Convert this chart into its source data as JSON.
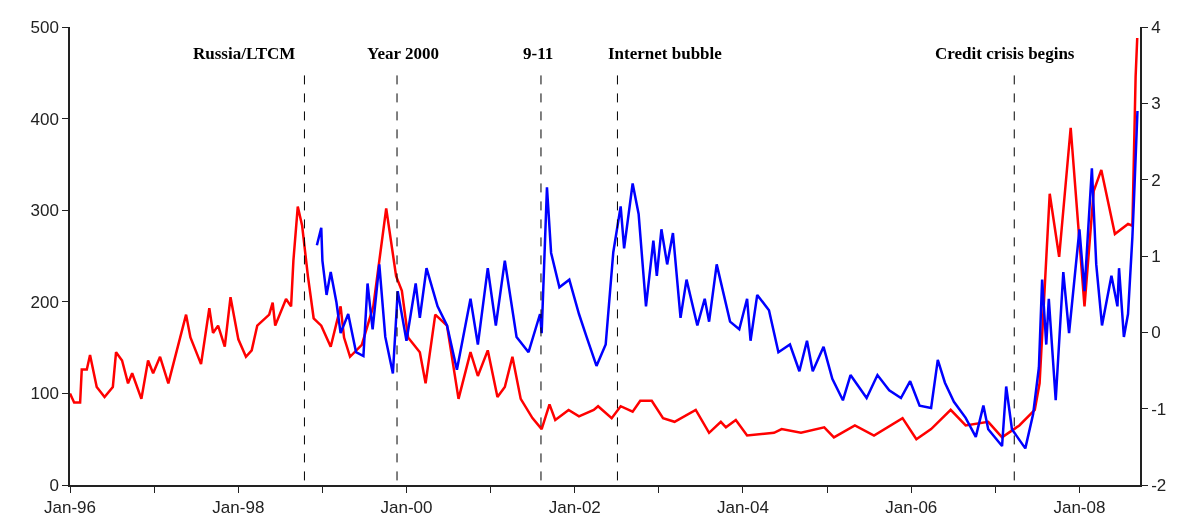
{
  "chart_data": {
    "type": "line",
    "xlim": [
      "1996-01-01",
      "2008-09-20"
    ],
    "xticks": [
      {
        "value": "1996-01-01",
        "label": "Jan-96"
      },
      {
        "value": "1997-01-01",
        "label": null
      },
      {
        "value": "1998-01-01",
        "label": "Jan-98"
      },
      {
        "value": "1999-01-01",
        "label": null
      },
      {
        "value": "2000-01-01",
        "label": "Jan-00"
      },
      {
        "value": "2001-01-01",
        "label": null
      },
      {
        "value": "2002-01-01",
        "label": "Jan-02"
      },
      {
        "value": "2003-01-01",
        "label": null
      },
      {
        "value": "2004-01-01",
        "label": "Jan-04"
      },
      {
        "value": "2005-01-01",
        "label": null
      },
      {
        "value": "2006-01-01",
        "label": "Jan-06"
      },
      {
        "value": "2007-01-01",
        "label": null
      },
      {
        "value": "2008-01-01",
        "label": "Jan-08"
      }
    ],
    "ylim": [
      0,
      500
    ],
    "yticks": [
      0,
      100,
      200,
      300,
      400,
      500
    ],
    "y2lim": [
      -2,
      4
    ],
    "y2ticks": [
      -2,
      -1,
      0,
      1,
      2,
      3,
      4
    ],
    "marker": "none",
    "line_style": "solid",
    "series": [
      {
        "color": "#ff0000",
        "x": [
          "1996-01-01",
          "1996-01-19",
          "1996-02-14",
          "1996-02-21",
          "1996-03-14",
          "1996-03-28",
          "1996-04-26",
          "1996-05-30",
          "1996-07-05",
          "1996-07-19",
          "1996-08-14",
          "1996-09-09",
          "1996-09-27",
          "1996-11-06",
          "1996-12-05",
          "1996-12-27",
          "1997-01-26",
          "1997-03-03",
          "1997-05-19",
          "1997-06-07",
          "1997-07-23",
          "1997-08-28",
          "1997-09-13",
          "1997-10-05",
          "1997-11-03",
          "1997-11-28",
          "1998-01-01",
          "1998-02-03",
          "1998-02-28",
          "1998-03-24",
          "1998-05-15",
          "1998-05-30",
          "1998-06-10",
          "1998-07-27",
          "1998-08-18",
          "1998-08-28",
          "1998-09-16",
          "1998-10-05",
          "1998-10-30",
          "1998-11-24",
          "1998-12-27",
          "1999-02-06",
          "1999-03-21",
          "1999-04-05",
          "1999-05-01",
          "1999-06-21",
          "1999-08-10",
          "1999-10-05",
          "1999-11-17",
          "1999-12-12",
          "2000-01-08",
          "2000-02-28",
          "2000-03-24",
          "2000-05-05",
          "2000-06-25",
          "2000-08-14",
          "2000-10-05",
          "2000-11-06",
          "2000-12-19",
          "2001-01-30",
          "2001-03-03",
          "2001-04-05",
          "2001-05-11",
          "2001-07-01",
          "2001-08-10",
          "2001-09-13",
          "2001-10-08",
          "2001-12-05",
          "2002-01-19",
          "2002-03-24",
          "2002-04-12",
          "2002-06-10",
          "2002-07-19",
          "2002-09-09",
          "2002-10-12",
          "2002-12-01",
          "2003-01-19",
          "2003-03-10",
          "2003-06-10",
          "2003-08-07",
          "2003-09-27",
          "2003-10-19",
          "2003-12-01",
          "2004-01-19",
          "2004-05-15",
          "2004-06-17",
          "2004-09-09",
          "2004-12-19",
          "2005-01-30",
          "2005-05-01",
          "2005-07-23",
          "2005-11-24",
          "2006-01-23",
          "2006-03-28",
          "2006-06-21",
          "2006-08-25",
          "2006-12-01",
          "2007-01-30",
          "2007-04-15",
          "2007-06-21",
          "2007-07-12",
          "2007-08-25",
          "2007-10-05",
          "2007-11-24",
          "2008-01-23",
          "2008-03-03",
          "2008-04-05",
          "2008-06-03",
          "2008-07-30",
          "2008-08-18",
          "2008-09-01",
          "2008-09-08"
        ],
        "values": [
          100,
          90,
          90,
          126,
          126,
          142,
          107,
          96,
          107,
          145,
          136,
          111,
          122,
          94,
          136,
          122,
          140,
          111,
          186,
          161,
          132,
          193,
          166,
          174,
          151,
          205,
          159,
          140,
          147,
          174,
          186,
          199,
          174,
          203,
          195,
          245,
          304,
          283,
          228,
          182,
          174,
          151,
          195,
          161,
          140,
          153,
          195,
          302,
          228,
          212,
          161,
          145,
          111,
          186,
          174,
          94,
          145,
          119,
          147,
          96,
          107,
          140,
          94,
          73,
          61,
          88,
          71,
          82,
          75,
          82,
          86,
          73,
          86,
          80,
          92,
          92,
          73,
          69,
          82,
          57,
          69,
          63,
          71,
          54,
          57,
          61,
          57,
          63,
          52,
          65,
          54,
          73,
          50,
          61,
          82,
          65,
          69,
          52,
          65,
          82,
          111,
          318,
          249,
          390,
          195,
          321,
          344,
          274,
          285,
          283,
          446,
          488
        ]
      },
      {
        "color": "#0000ff",
        "axis": "y2",
        "x": [
          "1998-12-08",
          "1998-12-27",
          "1999-01-01",
          "1999-01-19",
          "1999-02-06",
          "1999-03-03",
          "1999-03-21",
          "1999-04-23",
          "1999-05-27",
          "1999-06-28",
          "1999-07-16",
          "1999-08-07",
          "1999-09-05",
          "1999-10-01",
          "1999-11-03",
          "1999-11-24",
          "2000-01-01",
          "2000-02-10",
          "2000-02-28",
          "2000-03-28",
          "2000-05-15",
          "2000-06-25",
          "2000-08-07",
          "2000-10-05",
          "2000-11-06",
          "2000-12-19",
          "2001-01-23",
          "2001-03-03",
          "2001-04-23",
          "2001-06-14",
          "2001-08-03",
          "2001-08-10",
          "2001-09-02",
          "2001-09-20",
          "2001-10-26",
          "2001-12-08",
          "2002-01-19",
          "2002-02-21",
          "2002-04-05",
          "2002-05-15",
          "2002-06-17",
          "2002-07-19",
          "2002-08-03",
          "2002-09-09",
          "2002-10-05",
          "2002-11-06",
          "2002-12-08",
          "2002-12-23",
          "2003-01-12",
          "2003-02-06",
          "2003-03-03",
          "2003-04-05",
          "2003-05-01",
          "2003-06-17",
          "2003-07-19",
          "2003-08-07",
          "2003-09-09",
          "2003-11-06",
          "2003-12-16",
          "2004-01-19",
          "2004-02-03",
          "2004-03-03",
          "2004-04-23",
          "2004-06-03",
          "2004-07-23",
          "2004-09-02",
          "2004-10-05",
          "2004-10-30",
          "2004-12-16",
          "2005-01-23",
          "2005-03-10",
          "2005-04-12",
          "2005-06-21",
          "2005-08-07",
          "2005-09-27",
          "2005-11-17",
          "2005-12-27",
          "2006-02-06",
          "2006-03-28",
          "2006-04-26",
          "2006-05-27",
          "2006-07-05",
          "2006-08-25",
          "2006-10-08",
          "2006-11-10",
          "2006-12-01",
          "2007-01-30",
          "2007-02-17",
          "2007-03-14",
          "2007-05-11",
          "2007-06-14",
          "2007-07-09",
          "2007-07-23",
          "2007-08-10",
          "2007-08-21",
          "2007-09-20",
          "2007-10-23",
          "2007-11-17",
          "2008-01-01",
          "2008-01-23",
          "2008-02-24",
          "2008-03-14",
          "2008-04-08",
          "2008-05-19",
          "2008-06-14",
          "2008-06-21",
          "2008-07-12",
          "2008-07-30",
          "2008-08-18",
          "2008-08-25",
          "2008-09-09"
        ],
        "values": [
          1.14,
          1.37,
          0.94,
          0.49,
          0.79,
          0.39,
          -0.01,
          0.24,
          -0.26,
          -0.31,
          0.64,
          0.04,
          0.89,
          -0.06,
          -0.54,
          0.54,
          -0.11,
          0.64,
          0.19,
          0.84,
          0.34,
          0.09,
          -0.49,
          0.44,
          -0.16,
          0.84,
          0.09,
          0.94,
          -0.06,
          -0.26,
          0.24,
          -0.01,
          1.9,
          1.04,
          0.59,
          0.69,
          0.24,
          -0.06,
          -0.44,
          -0.16,
          1.05,
          1.65,
          1.1,
          1.95,
          1.55,
          0.34,
          1.2,
          0.74,
          1.35,
          0.89,
          1.3,
          0.19,
          0.69,
          0.09,
          0.44,
          0.14,
          0.89,
          0.14,
          0.04,
          0.44,
          -0.11,
          0.49,
          0.29,
          -0.26,
          -0.16,
          -0.51,
          -0.11,
          -0.51,
          -0.19,
          -0.61,
          -0.89,
          -0.56,
          -0.86,
          -0.56,
          -0.76,
          -0.86,
          -0.64,
          -0.96,
          -0.99,
          -0.36,
          -0.66,
          -0.91,
          -1.12,
          -1.37,
          -0.96,
          -1.27,
          -1.49,
          -0.71,
          -1.27,
          -1.52,
          -1.07,
          -0.46,
          0.69,
          -0.16,
          0.44,
          -0.89,
          0.79,
          -0.01,
          1.35,
          0.54,
          2.15,
          0.89,
          0.09,
          0.74,
          0.34,
          0.84,
          -0.06,
          0.24,
          1.25,
          1.75,
          2.9
        ]
      }
    ],
    "ref_lines": [
      {
        "axis": "x",
        "value": "1998-10-15",
        "label": "Russia/LTCM",
        "color": "#000000",
        "line_style": "dashed"
      },
      {
        "axis": "x",
        "value": "1999-11-21",
        "label": "Year 2000",
        "color": "#000000",
        "line_style": "dashed"
      },
      {
        "axis": "x",
        "value": "2001-08-07",
        "label": "9-11",
        "color": "#000000",
        "line_style": "dashed"
      },
      {
        "axis": "x",
        "value": "2002-07-05",
        "label": "Internet bubble",
        "color": "#000000",
        "line_style": "dashed"
      },
      {
        "axis": "x",
        "value": "2007-03-24",
        "label": "Credit crisis begins",
        "color": "#000000",
        "line_style": "dashed"
      }
    ]
  }
}
